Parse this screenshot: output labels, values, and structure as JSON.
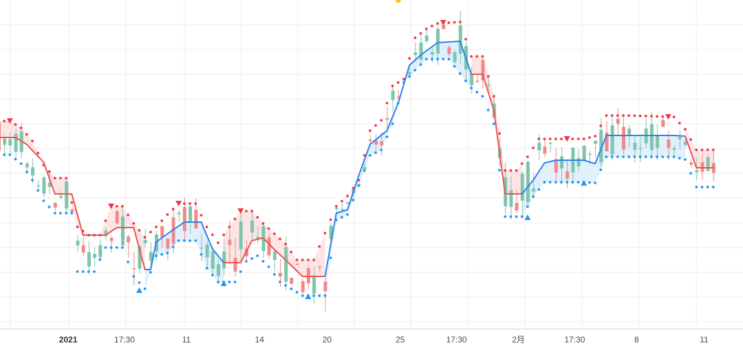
{
  "chart_data": {
    "type": "candlestick",
    "title": "",
    "xlabel": "",
    "ylabel": "",
    "grid": true,
    "colors": {
      "up": "#7fc4ae",
      "down": "#ef8a8a",
      "trend_up": "#2f80ed",
      "trend_down": "#ef5350",
      "band_up": "#d6ecfb",
      "band_down": "#fcdcdc",
      "stop_up": "#2196f3",
      "stop_down": "#f23645",
      "signal": "#f5c518",
      "grid": "#ececec"
    },
    "x_ticks": [
      {
        "label": "2021",
        "bold": true,
        "index": 12
      },
      {
        "label": "17:30",
        "bold": false,
        "index": 22
      },
      {
        "label": "11",
        "bold": false,
        "index": 33
      },
      {
        "label": "14",
        "bold": false,
        "index": 46
      },
      {
        "label": "20",
        "bold": false,
        "index": 58
      },
      {
        "label": "25",
        "bold": false,
        "index": 71
      },
      {
        "label": "17:30",
        "bold": false,
        "index": 81
      },
      {
        "label": "2月",
        "bold": false,
        "index": 92
      },
      {
        "label": "17:30",
        "bold": false,
        "index": 102
      },
      {
        "label": "8",
        "bold": false,
        "index": 113
      },
      {
        "label": "11",
        "bold": false,
        "index": 125
      }
    ],
    "ylim": [
      0,
      509
    ],
    "candles": [],
    "trend_line": [
      [
        0,
        200
      ],
      [
        3,
        200
      ],
      [
        5,
        210
      ],
      [
        8,
        236
      ],
      [
        10,
        282
      ],
      [
        13,
        282
      ],
      [
        15,
        342
      ],
      [
        19,
        342
      ],
      [
        21,
        331
      ],
      [
        24,
        331
      ],
      [
        26,
        392
      ],
      [
        27,
        392
      ],
      [
        28,
        352
      ],
      [
        30,
        340
      ],
      [
        33,
        323
      ],
      [
        36,
        323
      ],
      [
        38,
        362
      ],
      [
        40,
        382
      ],
      [
        43,
        382
      ],
      [
        45,
        350
      ],
      [
        47,
        346
      ],
      [
        49,
        363
      ],
      [
        51,
        378
      ],
      [
        54,
        402
      ],
      [
        58,
        402
      ],
      [
        60,
        310
      ],
      [
        62,
        305
      ],
      [
        64,
        255
      ],
      [
        66,
        210
      ],
      [
        69,
        190
      ],
      [
        71,
        150
      ],
      [
        73,
        95
      ],
      [
        75,
        80
      ],
      [
        78,
        62
      ],
      [
        82,
        60
      ],
      [
        84,
        108
      ],
      [
        86,
        108
      ],
      [
        88,
        160
      ],
      [
        90,
        282
      ],
      [
        93,
        282
      ],
      [
        95,
        262
      ],
      [
        97,
        237
      ],
      [
        99,
        233
      ],
      [
        104,
        233
      ],
      [
        106,
        238
      ],
      [
        108,
        197
      ],
      [
        112,
        197
      ],
      [
        120,
        197
      ],
      [
        122,
        198
      ],
      [
        124,
        244
      ],
      [
        127,
        244
      ]
    ],
    "trend_up_segments": [
      [
        26,
        39
      ],
      [
        58,
        83
      ],
      [
        93,
        121
      ]
    ],
    "upper_dots": [
      [
        0,
        176
      ],
      [
        2,
        176
      ],
      [
        4,
        186
      ],
      [
        6,
        205
      ],
      [
        8,
        240
      ],
      [
        10,
        259
      ],
      [
        12,
        259
      ],
      [
        14,
        330
      ],
      [
        16,
        342
      ],
      [
        18,
        342
      ],
      [
        20,
        300
      ],
      [
        22,
        300
      ],
      [
        24,
        325
      ],
      [
        26,
        345
      ],
      [
        28,
        330
      ],
      [
        30,
        312
      ],
      [
        32,
        296
      ],
      [
        35,
        296
      ],
      [
        37,
        330
      ],
      [
        39,
        353
      ],
      [
        41,
        330
      ],
      [
        43,
        307
      ],
      [
        45,
        307
      ],
      [
        47,
        325
      ],
      [
        49,
        340
      ],
      [
        51,
        355
      ],
      [
        53,
        378
      ],
      [
        56,
        378
      ],
      [
        60,
        300
      ],
      [
        62,
        285
      ],
      [
        64,
        262
      ],
      [
        66,
        190
      ],
      [
        68,
        175
      ],
      [
        70,
        125
      ],
      [
        72,
        115
      ],
      [
        74,
        55
      ],
      [
        76,
        42
      ],
      [
        78,
        34
      ],
      [
        82,
        32
      ],
      [
        84,
        82
      ],
      [
        86,
        82
      ],
      [
        88,
        140
      ],
      [
        90,
        248
      ],
      [
        92,
        248
      ],
      [
        94,
        228
      ],
      [
        96,
        202
      ],
      [
        98,
        202
      ],
      [
        104,
        202
      ],
      [
        106,
        198
      ],
      [
        108,
        168
      ],
      [
        112,
        168
      ],
      [
        120,
        170
      ],
      [
        122,
        188
      ],
      [
        124,
        218
      ],
      [
        127,
        218
      ]
    ],
    "lower_dots": [
      [
        0,
        225
      ],
      [
        2,
        225
      ],
      [
        4,
        238
      ],
      [
        6,
        262
      ],
      [
        8,
        292
      ],
      [
        10,
        310
      ],
      [
        13,
        310
      ],
      [
        14,
        395
      ],
      [
        17,
        395
      ],
      [
        19,
        360
      ],
      [
        22,
        360
      ],
      [
        24,
        402
      ],
      [
        26,
        420
      ],
      [
        28,
        372
      ],
      [
        30,
        368
      ],
      [
        32,
        350
      ],
      [
        35,
        350
      ],
      [
        37,
        390
      ],
      [
        39,
        410
      ],
      [
        42,
        410
      ],
      [
        44,
        380
      ],
      [
        46,
        372
      ],
      [
        48,
        388
      ],
      [
        50,
        410
      ],
      [
        52,
        420
      ],
      [
        54,
        430
      ],
      [
        58,
        430
      ],
      [
        60,
        320
      ],
      [
        62,
        312
      ],
      [
        64,
        270
      ],
      [
        66,
        226
      ],
      [
        68,
        218
      ],
      [
        70,
        180
      ],
      [
        72,
        120
      ],
      [
        74,
        102
      ],
      [
        76,
        86
      ],
      [
        80,
        86
      ],
      [
        84,
        128
      ],
      [
        86,
        140
      ],
      [
        88,
        180
      ],
      [
        90,
        315
      ],
      [
        93,
        315
      ],
      [
        95,
        286
      ],
      [
        97,
        265
      ],
      [
        99,
        265
      ],
      [
        104,
        265
      ],
      [
        106,
        266
      ],
      [
        108,
        228
      ],
      [
        112,
        228
      ],
      [
        120,
        228
      ],
      [
        122,
        232
      ],
      [
        124,
        272
      ],
      [
        127,
        272
      ]
    ],
    "markers": [
      {
        "type": "sell",
        "index": 2,
        "y": 176
      },
      {
        "type": "sell",
        "index": 20,
        "y": 300
      },
      {
        "type": "buy",
        "index": 25,
        "y": 422
      },
      {
        "type": "sell",
        "index": 32,
        "y": 296
      },
      {
        "type": "buy",
        "index": 40,
        "y": 412
      },
      {
        "type": "sell",
        "index": 43,
        "y": 307
      },
      {
        "type": "buy",
        "index": 55,
        "y": 431
      },
      {
        "type": "sell",
        "index": 79,
        "y": 33
      },
      {
        "type": "buy",
        "index": 94,
        "y": 316
      },
      {
        "type": "sell",
        "index": 101,
        "y": 202
      },
      {
        "type": "buy",
        "index": 104,
        "y": 266
      },
      {
        "type": "sell",
        "index": 119,
        "y": 170
      }
    ],
    "signal_dot": {
      "index": 71,
      "y": 0
    }
  }
}
